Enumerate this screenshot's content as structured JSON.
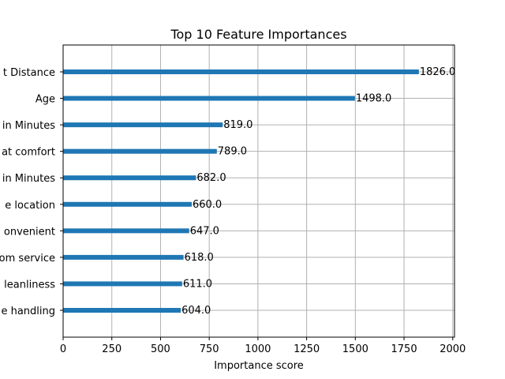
{
  "chart_data": {
    "type": "bar",
    "orientation": "horizontal",
    "title": "Top 10 Feature Importances",
    "xlabel": "Importance score",
    "ylabel": "",
    "categories": [
      "t Distance",
      "Age",
      "in Minutes",
      "at comfort",
      "in Minutes",
      "e location",
      "onvenient",
      "om service",
      "leanliness",
      "e handling"
    ],
    "values": [
      1826.0,
      1498.0,
      819.0,
      789.0,
      682.0,
      660.0,
      647.0,
      618.0,
      611.0,
      604.0
    ],
    "value_labels": [
      "1826.0",
      "1498.0",
      "819.0",
      "789.0",
      "682.0",
      "660.0",
      "647.0",
      "618.0",
      "611.0",
      "604.0"
    ],
    "xlim": [
      0,
      2009
    ],
    "xticks": [
      0,
      250,
      500,
      750,
      1000,
      1250,
      1500,
      1750,
      2000
    ],
    "xtick_labels": [
      "0",
      "250",
      "500",
      "750",
      "1000",
      "1250",
      "1500",
      "1750",
      "2000"
    ],
    "grid": true,
    "bar_color": "#1f77b4",
    "grid_color": "#b0b0b0"
  }
}
